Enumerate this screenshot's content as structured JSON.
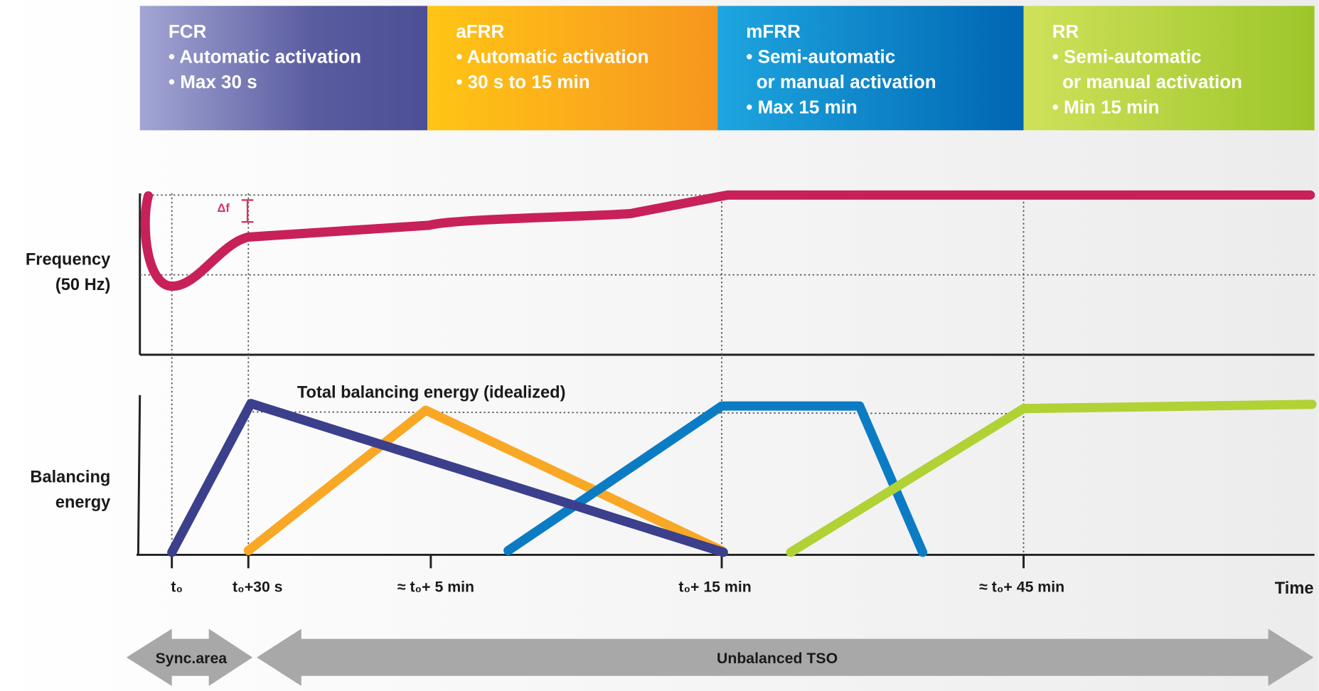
{
  "panels": [
    {
      "title": "FCR",
      "lines": [
        "• Automatic activation",
        "• Max 30 s"
      ]
    },
    {
      "title": "aFRR",
      "lines": [
        "• Automatic activation",
        "• 30 s to 15 min"
      ]
    },
    {
      "title": "mFRR",
      "lines": [
        "• Semi-automatic",
        "  or manual activation",
        "• Max 15 min"
      ]
    },
    {
      "title": "RR",
      "lines": [
        "• Semi-automatic",
        "  or manual activation",
        "• Min 15 min"
      ]
    }
  ],
  "frequency_label": [
    "Frequency",
    "(50 Hz)"
  ],
  "delta_label": "Δf",
  "balancing_label": [
    "Balancing",
    "energy"
  ],
  "total_label": "Total balancing energy (idealized)",
  "time_labels": [
    "t₀",
    "t₀+30 s",
    "≈ t₀+ 5 min",
    "t₀+ 15 min",
    "≈ t₀+ 45 min"
  ],
  "time_axis_label": "Time",
  "sync_label": "Sync.area",
  "tso_label": "Unbalanced TSO"
}
